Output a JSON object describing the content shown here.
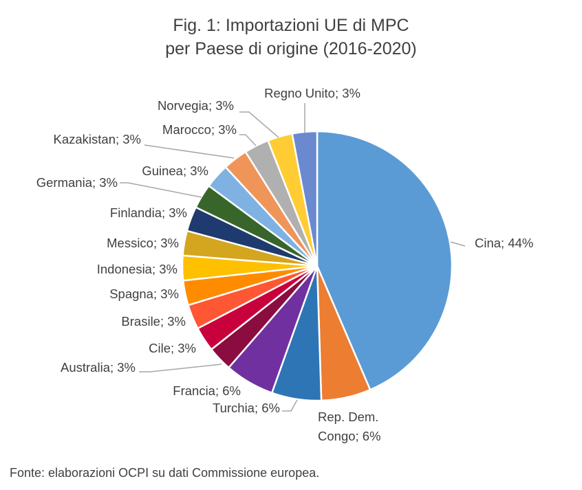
{
  "title_line1": "Fig. 1: Importazioni UE di MPC",
  "title_line2": "per Paese di origine (2016-2020)",
  "source": "Fonte: elaborazioni OCPI su dati Commissione europea.",
  "chart_data": {
    "type": "pie",
    "title": "Fig. 1: Importazioni UE di MPC per Paese di origine (2016-2020)",
    "unit": "%",
    "slices": [
      {
        "label": "Cina",
        "value": 44,
        "display": "Cina; 44%",
        "color": "#5B9BD5"
      },
      {
        "label": "Rep. Dem. Congo",
        "value": 6,
        "display": [
          "Rep. Dem.",
          "Congo; 6%"
        ],
        "color": "#ED7D31"
      },
      {
        "label": "Turchia",
        "value": 6,
        "display": "Turchia; 6%",
        "color": "#2E75B6"
      },
      {
        "label": "Francia",
        "value": 6,
        "display": "Francia; 6%",
        "color": "#7030A0"
      },
      {
        "label": "Australia",
        "value": 3,
        "display": "Australia; 3%",
        "color": "#8B0C3E"
      },
      {
        "label": "Cile",
        "value": 3,
        "display": "Cile; 3%",
        "color": "#C8003C"
      },
      {
        "label": "Brasile",
        "value": 3,
        "display": "Brasile; 3%",
        "color": "#FF5733"
      },
      {
        "label": "Spagna",
        "value": 3,
        "display": "Spagna; 3%",
        "color": "#FF8C00"
      },
      {
        "label": "Indonesia",
        "value": 3,
        "display": "Indonesia; 3%",
        "color": "#FFC000"
      },
      {
        "label": "Messico",
        "value": 3,
        "display": "Messico; 3%",
        "color": "#D4A51E"
      },
      {
        "label": "Finlandia",
        "value": 3,
        "display": "Finlandia; 3%",
        "color": "#1F3A6E"
      },
      {
        "label": "Germania",
        "value": 3,
        "display": "Germania; 3%",
        "color": "#38662A"
      },
      {
        "label": "Guinea",
        "value": 3,
        "display": "Guinea; 3%",
        "color": "#7FB2E3"
      },
      {
        "label": "Kazakistan",
        "value": 3,
        "display": "Kazakistan; 3%",
        "color": "#F0955A"
      },
      {
        "label": "Marocco",
        "value": 3,
        "display": "Marocco; 3%",
        "color": "#B0B0B0"
      },
      {
        "label": "Norvegia",
        "value": 3,
        "display": "Norvegia; 3%",
        "color": "#FFCD33"
      },
      {
        "label": "Regno Unito",
        "value": 3,
        "display": "Regno Unito; 3%",
        "color": "#6A89CF"
      }
    ]
  }
}
